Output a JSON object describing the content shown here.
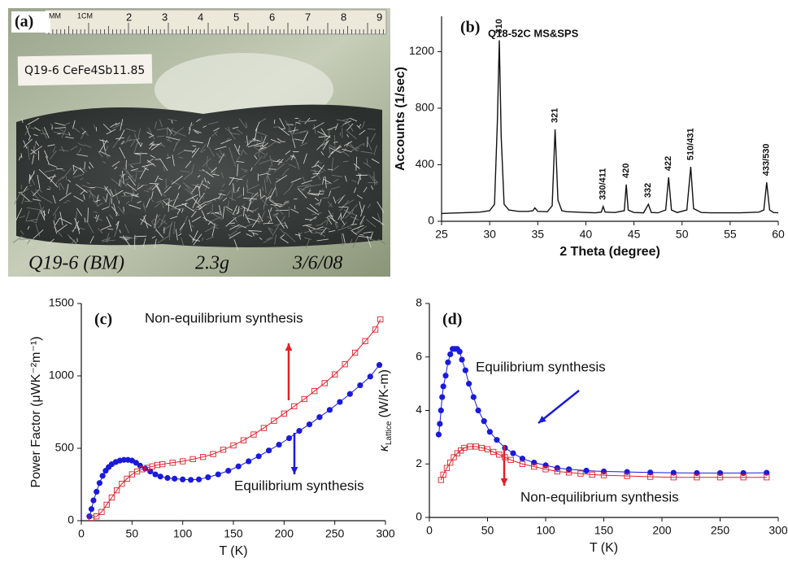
{
  "photo": {
    "panel_label": "(a)",
    "ruler": {
      "unit_mm": "MM",
      "unit_cm": "1CM",
      "numbers": [
        "2",
        "3",
        "4",
        "5",
        "6",
        "7",
        "8",
        "9"
      ]
    },
    "sample_label": "Q19-6 CeFe4Sb11.85",
    "handwriting": [
      "Q19-6 (BM)",
      "2.3g",
      "3/6/08"
    ]
  },
  "chart_data": [
    {
      "type": "line",
      "panel_label": "(b)",
      "title": "Q18-52C MS&SPS",
      "xlabel": "2 Theta (degree)",
      "ylabel": "Accounts (1/sec)",
      "xlim": [
        25,
        60
      ],
      "xticks": [
        25,
        30,
        35,
        40,
        45,
        50,
        55,
        60
      ],
      "ylim": [
        0,
        1450
      ],
      "yticks": [
        0,
        400,
        800,
        1200
      ],
      "series": [
        {
          "color": "#111111",
          "marker": "none",
          "x": [
            25,
            26,
            27,
            28,
            29,
            30,
            30.5,
            30.8,
            31,
            31.2,
            31.5,
            32,
            33,
            34,
            34.5,
            34.7,
            35,
            36,
            36.5,
            36.8,
            37.1,
            37.5,
            38,
            39,
            40,
            41,
            41.6,
            41.8,
            42,
            43,
            44,
            44.2,
            44.4,
            45,
            46,
            46.5,
            46.8,
            47.5,
            48.3,
            48.6,
            48.9,
            49.5,
            50.5,
            50.9,
            51.2,
            52,
            53,
            54,
            55,
            56,
            57,
            58,
            58.5,
            58.8,
            59.1,
            59.5,
            60
          ],
          "values": [
            55,
            58,
            60,
            62,
            65,
            75,
            120,
            700,
            1280,
            600,
            120,
            80,
            70,
            70,
            75,
            95,
            70,
            68,
            110,
            650,
            150,
            75,
            68,
            65,
            62,
            60,
            65,
            105,
            65,
            62,
            75,
            260,
            80,
            62,
            60,
            120,
            62,
            60,
            80,
            310,
            80,
            62,
            80,
            385,
            90,
            62,
            60,
            60,
            60,
            60,
            62,
            65,
            80,
            275,
            80,
            62,
            60
          ]
        }
      ],
      "peak_labels": [
        {
          "label": "310",
          "x": 31
        },
        {
          "label": "321",
          "x": 36.8
        },
        {
          "label": "330/411",
          "x": 41.8
        },
        {
          "label": "420",
          "x": 44.2
        },
        {
          "label": "332",
          "x": 46.5
        },
        {
          "label": "422",
          "x": 48.6
        },
        {
          "label": "510/431",
          "x": 50.9
        },
        {
          "label": "433/530",
          "x": 58.8
        }
      ]
    },
    {
      "type": "line",
      "panel_label": "(c)",
      "xlabel": "T (K)",
      "ylabel": "Power Factor (μWK⁻²m⁻¹)",
      "xlim": [
        0,
        300
      ],
      "xticks": [
        0,
        50,
        100,
        150,
        200,
        250,
        300
      ],
      "ylim": [
        0,
        1500
      ],
      "yticks": [
        0,
        500,
        1000,
        1500
      ],
      "series": [
        {
          "name": "Equilibrium synthesis",
          "color": "#1a1adc",
          "marker": "circle",
          "x": [
            8,
            10,
            12,
            15,
            18,
            21,
            24,
            27,
            30,
            34,
            38,
            42,
            46,
            50,
            54,
            58,
            63,
            68,
            73,
            78,
            85,
            92,
            100,
            108,
            116,
            125,
            135,
            145,
            155,
            165,
            175,
            185,
            195,
            205,
            215,
            225,
            235,
            245,
            255,
            265,
            275,
            285,
            294
          ],
          "values": [
            30,
            80,
            140,
            200,
            260,
            310,
            345,
            370,
            390,
            405,
            415,
            420,
            420,
            415,
            400,
            380,
            360,
            340,
            320,
            305,
            295,
            290,
            285,
            282,
            285,
            300,
            320,
            345,
            375,
            410,
            445,
            485,
            525,
            570,
            620,
            665,
            715,
            765,
            820,
            875,
            935,
            995,
            1075
          ]
        },
        {
          "name": "Non-equilibrium synthesis",
          "color": "#e0202a",
          "marker": "square",
          "x": [
            10,
            15,
            20,
            25,
            30,
            35,
            40,
            45,
            50,
            55,
            60,
            65,
            70,
            75,
            80,
            90,
            100,
            110,
            120,
            130,
            140,
            150,
            160,
            170,
            180,
            190,
            200,
            210,
            220,
            230,
            240,
            250,
            260,
            270,
            280,
            290,
            295
          ],
          "values": [
            20,
            30,
            60,
            110,
            160,
            210,
            255,
            290,
            320,
            340,
            355,
            365,
            375,
            385,
            390,
            400,
            410,
            425,
            440,
            460,
            490,
            520,
            555,
            595,
            640,
            690,
            740,
            790,
            840,
            895,
            950,
            1010,
            1080,
            1160,
            1240,
            1320,
            1390
          ]
        }
      ]
    },
    {
      "type": "line",
      "panel_label": "(d)",
      "xlabel": "T (K)",
      "ylabel": {
        "symbol": "κ",
        "subscript": "Lattice",
        "unit": "(W/K-m)"
      },
      "xlim": [
        0,
        300
      ],
      "xticks": [
        0,
        50,
        100,
        150,
        200,
        250,
        300
      ],
      "ylim": [
        0,
        8
      ],
      "yticks": [
        0,
        2,
        4,
        6,
        8
      ],
      "series": [
        {
          "name": "Equilibrium synthesis",
          "color": "#1a1adc",
          "marker": "circle",
          "x": [
            8,
            9,
            10,
            11,
            12,
            14,
            16,
            18,
            20,
            22,
            24,
            26,
            28,
            31,
            34,
            38,
            42,
            47,
            52,
            58,
            65,
            72,
            80,
            90,
            100,
            110,
            120,
            135,
            150,
            170,
            190,
            210,
            230,
            250,
            270,
            290
          ],
          "values": [
            3.1,
            3.5,
            4.0,
            4.5,
            4.9,
            5.3,
            5.8,
            6.1,
            6.3,
            6.3,
            6.3,
            6.2,
            5.9,
            5.5,
            5.0,
            4.5,
            4.0,
            3.6,
            3.2,
            2.9,
            2.6,
            2.4,
            2.2,
            2.05,
            1.95,
            1.85,
            1.8,
            1.75,
            1.72,
            1.7,
            1.68,
            1.67,
            1.66,
            1.66,
            1.66,
            1.67
          ]
        },
        {
          "name": "Non-equilibrium synthesis",
          "color": "#e0202a",
          "marker": "square",
          "x": [
            10,
            12,
            15,
            18,
            21,
            24,
            27,
            30,
            35,
            40,
            45,
            50,
            55,
            60,
            65,
            70,
            80,
            90,
            100,
            110,
            120,
            130,
            140,
            150,
            170,
            190,
            210,
            230,
            250,
            270,
            290
          ],
          "values": [
            1.4,
            1.6,
            1.85,
            2.05,
            2.25,
            2.4,
            2.5,
            2.6,
            2.65,
            2.65,
            2.6,
            2.55,
            2.45,
            2.35,
            2.25,
            2.15,
            2.0,
            1.9,
            1.8,
            1.72,
            1.68,
            1.64,
            1.6,
            1.58,
            1.55,
            1.52,
            1.5,
            1.5,
            1.5,
            1.5,
            1.5
          ]
        }
      ]
    }
  ]
}
